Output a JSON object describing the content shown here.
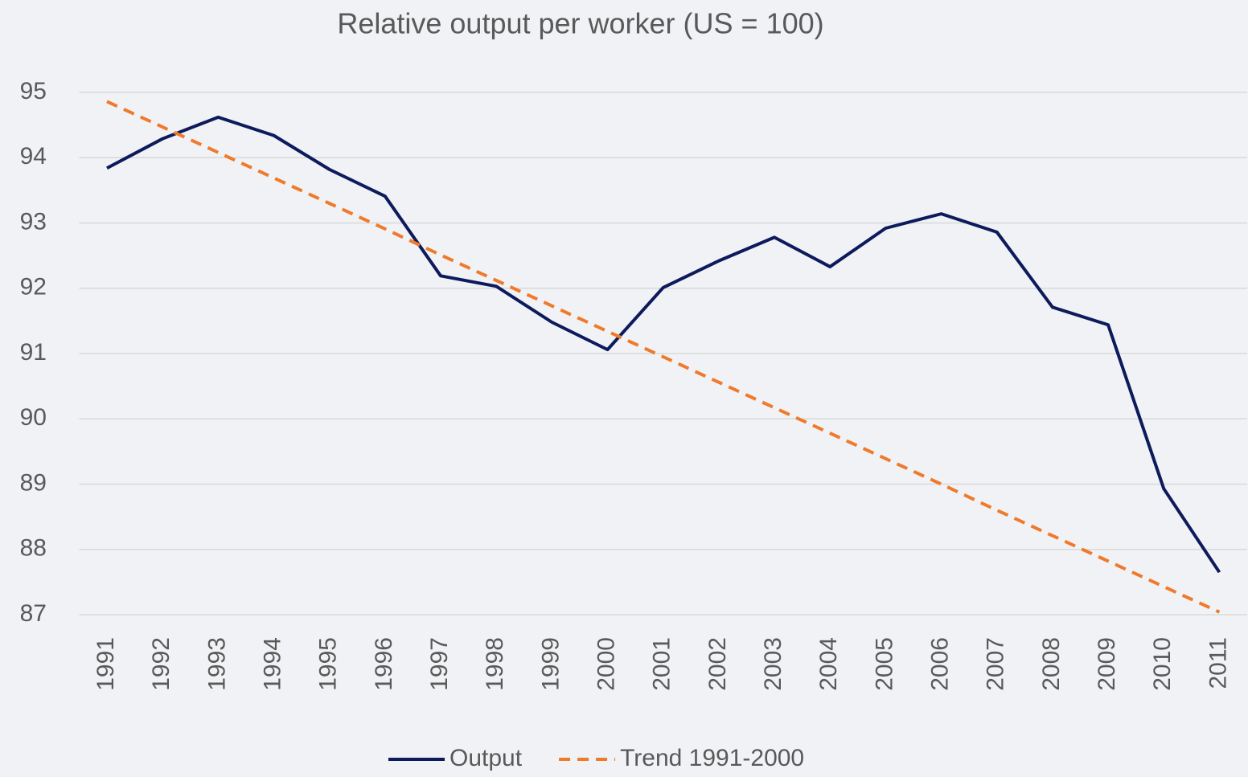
{
  "chart_data": {
    "type": "line",
    "title": "Relative output per worker (US = 100)",
    "categories": [
      "1991",
      "1992",
      "1993",
      "1994",
      "1995",
      "1996",
      "1997",
      "1998",
      "1999",
      "2000",
      "2001",
      "2002",
      "2003",
      "2004",
      "2005",
      "2006",
      "2007",
      "2008",
      "2009",
      "2010",
      "2011"
    ],
    "series": [
      {
        "name": "Output",
        "color": "#0d1a5c",
        "dash": false,
        "values": [
          93.84,
          94.29,
          94.62,
          94.34,
          93.82,
          93.41,
          92.19,
          92.03,
          91.48,
          91.06,
          92.01,
          92.42,
          92.78,
          92.33,
          92.92,
          93.14,
          92.86,
          91.71,
          91.44,
          88.93,
          87.65
        ]
      },
      {
        "name": "Trend 1991-2000",
        "color": "#f07a2b",
        "dash": true,
        "values": [
          94.86,
          94.47,
          94.08,
          93.69,
          93.3,
          92.91,
          92.51,
          92.12,
          91.73,
          91.34,
          90.95,
          90.56,
          90.17,
          89.78,
          89.39,
          89.0,
          88.6,
          88.21,
          87.82,
          87.43,
          87.04
        ]
      }
    ],
    "ylim": [
      87,
      95
    ],
    "yticks": [
      87,
      88,
      89,
      90,
      91,
      92,
      93,
      94,
      95
    ],
    "grid": true,
    "legend": "bottom"
  }
}
